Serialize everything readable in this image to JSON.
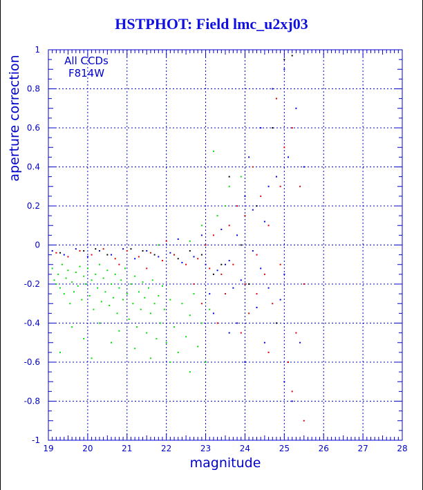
{
  "chart_data": {
    "type": "scatter",
    "title": "HSTPHOT: Field lmc_u2xj03",
    "xlabel": "magnitude",
    "ylabel": "aperture correction",
    "xlim": [
      19,
      28
    ],
    "ylim": [
      -1,
      1
    ],
    "x_ticks": [
      "19",
      "20",
      "21",
      "22",
      "23",
      "24",
      "25",
      "26",
      "27",
      "28"
    ],
    "y_ticks": [
      "-1",
      "-0.8",
      "-0.6",
      "-0.4",
      "-0.2",
      "0",
      "0.2",
      "0.4",
      "0.6",
      "0.8",
      "1"
    ],
    "grid": true,
    "annotation": [
      "All CCDs",
      "F814W"
    ],
    "series_colors": [
      "#00dd00",
      "#dd0000",
      "#0000dd",
      "#000000"
    ],
    "distribution_note_hidden": false,
    "series": [
      {
        "color": "#00dd00",
        "points": [
          [
            19.1,
            -0.12
          ],
          [
            19.15,
            -0.18
          ],
          [
            19.2,
            -0.2
          ],
          [
            19.25,
            -0.15
          ],
          [
            19.3,
            -0.22
          ],
          [
            19.35,
            -0.1
          ],
          [
            19.4,
            -0.25
          ],
          [
            19.45,
            -0.17
          ],
          [
            19.5,
            -0.13
          ],
          [
            19.55,
            -0.3
          ],
          [
            19.6,
            -0.19
          ],
          [
            19.65,
            -0.24
          ],
          [
            19.7,
            -0.14
          ],
          [
            19.75,
            -0.21
          ],
          [
            19.8,
            -0.11
          ],
          [
            19.85,
            -0.28
          ],
          [
            19.9,
            -0.16
          ],
          [
            19.95,
            -0.2
          ],
          [
            20.0,
            -0.12
          ],
          [
            20.05,
            -0.26
          ],
          [
            20.1,
            -0.18
          ],
          [
            20.15,
            -0.33
          ],
          [
            20.2,
            -0.15
          ],
          [
            20.25,
            -0.22
          ],
          [
            20.3,
            -0.1
          ],
          [
            20.35,
            -0.29
          ],
          [
            20.4,
            -0.17
          ],
          [
            20.45,
            -0.24
          ],
          [
            20.5,
            -0.13
          ],
          [
            20.55,
            -0.31
          ],
          [
            20.6,
            -0.2
          ],
          [
            20.65,
            -0.27
          ],
          [
            20.7,
            -0.15
          ],
          [
            20.75,
            -0.35
          ],
          [
            20.8,
            -0.22
          ],
          [
            20.85,
            -0.18
          ],
          [
            20.9,
            -0.28
          ],
          [
            20.95,
            -0.12
          ],
          [
            21.0,
            -0.25
          ],
          [
            21.05,
            -0.38
          ],
          [
            21.1,
            -0.2
          ],
          [
            21.15,
            -0.3
          ],
          [
            21.2,
            -0.16
          ],
          [
            21.25,
            -0.42
          ],
          [
            21.3,
            -0.24
          ],
          [
            21.35,
            -0.33
          ],
          [
            21.4,
            -0.19
          ],
          [
            21.45,
            -0.27
          ],
          [
            21.5,
            -0.45
          ],
          [
            21.55,
            -0.22
          ],
          [
            21.6,
            -0.35
          ],
          [
            21.65,
            -0.18
          ],
          [
            21.7,
            -0.3
          ],
          [
            21.75,
            -0.48
          ],
          [
            21.8,
            -0.26
          ],
          [
            21.85,
            -0.4
          ],
          [
            21.9,
            -0.21
          ],
          [
            21.95,
            -0.33
          ],
          [
            22.0,
            -0.5
          ],
          [
            22.1,
            -0.28
          ],
          [
            22.2,
            -0.42
          ],
          [
            22.3,
            -0.55
          ],
          [
            22.4,
            -0.3
          ],
          [
            22.5,
            -0.47
          ],
          [
            22.6,
            -0.36
          ],
          [
            22.7,
            -0.25
          ],
          [
            22.8,
            -0.52
          ],
          [
            22.9,
            -0.4
          ],
          [
            23.0,
            -0.6
          ],
          [
            23.1,
            -0.33
          ],
          [
            19.3,
            -0.55
          ],
          [
            19.6,
            -0.42
          ],
          [
            19.9,
            -0.48
          ],
          [
            20.1,
            -0.58
          ],
          [
            20.3,
            -0.4
          ],
          [
            20.6,
            -0.5
          ],
          [
            20.8,
            -0.44
          ],
          [
            21.2,
            -0.53
          ],
          [
            21.6,
            -0.58
          ],
          [
            22.1,
            -0.6
          ],
          [
            22.6,
            -0.65
          ],
          [
            23.2,
            0.48
          ],
          [
            23.6,
            0.3
          ],
          [
            23.9,
            0.35
          ],
          [
            22.9,
            0.1
          ],
          [
            23.3,
            0.15
          ],
          [
            21.8,
            0.0
          ],
          [
            22.2,
            -0.05
          ],
          [
            22.6,
            0.02
          ],
          [
            23.5,
            0.2
          ]
        ]
      },
      {
        "color": "#dd0000",
        "points": [
          [
            19.2,
            -0.04
          ],
          [
            19.5,
            -0.06
          ],
          [
            19.8,
            -0.03
          ],
          [
            20.1,
            -0.05
          ],
          [
            20.4,
            -0.02
          ],
          [
            20.7,
            -0.07
          ],
          [
            21.0,
            -0.03
          ],
          [
            21.3,
            -0.06
          ],
          [
            21.6,
            -0.04
          ],
          [
            21.9,
            -0.08
          ],
          [
            22.2,
            -0.05
          ],
          [
            22.5,
            -0.1
          ],
          [
            22.8,
            -0.07
          ],
          [
            23.1,
            -0.12
          ],
          [
            23.4,
            -0.15
          ],
          [
            23.7,
            -0.1
          ],
          [
            24.0,
            -0.2
          ],
          [
            24.3,
            -0.05
          ],
          [
            24.6,
            0.1
          ],
          [
            24.9,
            0.3
          ],
          [
            25.2,
            0.6
          ],
          [
            25.5,
            -0.2
          ],
          [
            23.2,
            0.05
          ],
          [
            23.5,
            -0.25
          ],
          [
            23.8,
            0.2
          ],
          [
            24.1,
            -0.35
          ],
          [
            24.4,
            0.25
          ],
          [
            24.7,
            -0.3
          ],
          [
            25.0,
            0.5
          ],
          [
            25.3,
            -0.45
          ],
          [
            24.2,
            0.4
          ],
          [
            24.5,
            -0.15
          ],
          [
            24.8,
            0.75
          ],
          [
            25.1,
            -0.6
          ],
          [
            25.4,
            0.3
          ],
          [
            23.9,
            -0.45
          ],
          [
            24.6,
            -0.55
          ],
          [
            25.2,
            -0.75
          ],
          [
            25.5,
            -0.9
          ],
          [
            22.9,
            -0.3
          ],
          [
            23.3,
            -0.4
          ],
          [
            23.6,
            0.1
          ],
          [
            24.0,
            0.15
          ],
          [
            24.3,
            -0.25
          ],
          [
            24.9,
            -0.1
          ],
          [
            21.5,
            -0.12
          ],
          [
            20.8,
            -0.1
          ],
          [
            22.0,
            0.02
          ],
          [
            22.7,
            -0.2
          ],
          [
            23.0,
            0.0
          ]
        ]
      },
      {
        "color": "#0000dd",
        "points": [
          [
            19.1,
            -0.03
          ],
          [
            19.4,
            -0.05
          ],
          [
            19.7,
            -0.02
          ],
          [
            20.0,
            -0.06
          ],
          [
            20.3,
            -0.03
          ],
          [
            20.6,
            -0.05
          ],
          [
            20.9,
            -0.02
          ],
          [
            21.2,
            -0.07
          ],
          [
            21.5,
            -0.03
          ],
          [
            21.8,
            -0.06
          ],
          [
            22.1,
            -0.04
          ],
          [
            22.4,
            -0.09
          ],
          [
            22.7,
            -0.06
          ],
          [
            23.0,
            -0.1
          ],
          [
            23.3,
            -0.13
          ],
          [
            23.6,
            -0.08
          ],
          [
            23.9,
            -0.18
          ],
          [
            24.2,
            -0.03
          ],
          [
            24.5,
            0.12
          ],
          [
            24.8,
            0.35
          ],
          [
            25.0,
            0.9
          ],
          [
            25.3,
            0.7
          ],
          [
            23.4,
            0.08
          ],
          [
            23.7,
            -0.22
          ],
          [
            24.0,
            0.25
          ],
          [
            24.3,
            -0.32
          ],
          [
            24.6,
            0.3
          ],
          [
            24.9,
            -0.28
          ],
          [
            25.1,
            0.45
          ],
          [
            25.4,
            -0.5
          ],
          [
            24.1,
            0.45
          ],
          [
            24.4,
            -0.12
          ],
          [
            24.7,
            0.8
          ],
          [
            25.0,
            -0.7
          ],
          [
            25.5,
            0.4
          ],
          [
            23.8,
            -0.4
          ],
          [
            24.5,
            -0.5
          ],
          [
            25.2,
            -0.8
          ],
          [
            23.2,
            -0.35
          ],
          [
            23.5,
            -0.1
          ],
          [
            23.8,
            0.05
          ],
          [
            24.2,
            0.18
          ],
          [
            24.6,
            -0.22
          ],
          [
            25.0,
            -0.15
          ],
          [
            22.3,
            0.03
          ],
          [
            22.9,
            0.05
          ],
          [
            23.1,
            -0.25
          ],
          [
            23.6,
            -0.45
          ],
          [
            24.0,
            -0.6
          ],
          [
            24.4,
            0.6
          ]
        ]
      },
      {
        "color": "#000000",
        "points": [
          [
            19.3,
            -0.04
          ],
          [
            19.9,
            -0.03
          ],
          [
            20.5,
            -0.05
          ],
          [
            21.1,
            -0.02
          ],
          [
            21.7,
            -0.05
          ],
          [
            22.3,
            -0.07
          ],
          [
            22.9,
            -0.05
          ],
          [
            23.4,
            -0.1
          ],
          [
            23.9,
            0.0
          ],
          [
            24.3,
            0.2
          ],
          [
            24.7,
            0.6
          ],
          [
            25.0,
            0.95
          ],
          [
            25.2,
            0.97
          ],
          [
            24.1,
            -0.2
          ],
          [
            24.8,
            -0.4
          ],
          [
            23.6,
            0.35
          ],
          [
            23.2,
            -0.15
          ],
          [
            22.6,
            -0.03
          ],
          [
            21.4,
            -0.03
          ],
          [
            20.2,
            -0.02
          ]
        ]
      }
    ]
  }
}
